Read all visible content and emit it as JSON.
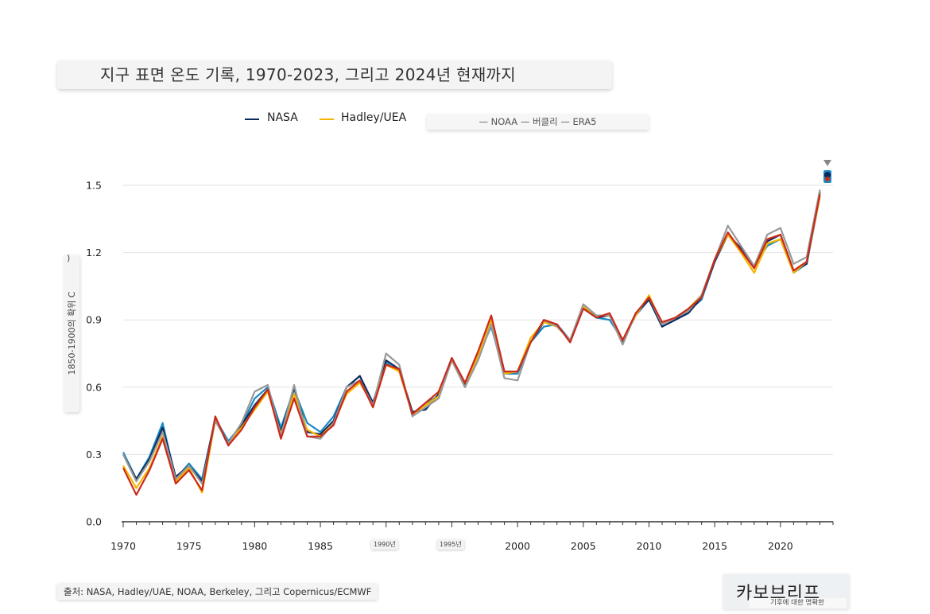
{
  "header": {
    "title": "지구 표면 온도 기록, 1970-2023, 그리고 2024년 현재까지"
  },
  "legend": {
    "nasa": "NASA",
    "hadley": "Hadley/UEA",
    "others": "— NOAA — 버클리 — ERA5"
  },
  "axis": {
    "ylabel": "1850-1900의 확위 C",
    "ylabel_paren": ")"
  },
  "chips": {
    "c1990": "1990년",
    "c1995": "1995년"
  },
  "footer": {
    "source": "출처: NASA, Hadley/UAE, NOAA, Berkeley, 그리고 Copernicus/ECMWF",
    "brand": "카보브리프",
    "tagline": "기후에 대한 명확한"
  },
  "chart_data": {
    "type": "line",
    "ylabel": "1850-1900의 확위 C",
    "xlim": [
      1970,
      2024
    ],
    "ylim": [
      0,
      1.5
    ],
    "yticks": [
      "0.0",
      "0.3",
      "0.6",
      "0.9",
      "1.2",
      "1.5"
    ],
    "xticks": [
      "1970",
      "1975",
      "1980",
      "1985",
      "1990",
      "1995",
      "2000",
      "2005",
      "2010",
      "2015",
      "2020"
    ],
    "grid": true,
    "legend_position": "top",
    "x": [
      1970,
      1971,
      1972,
      1973,
      1974,
      1975,
      1976,
      1977,
      1978,
      1979,
      1980,
      1981,
      1982,
      1983,
      1984,
      1985,
      1986,
      1987,
      1988,
      1989,
      1990,
      1991,
      1992,
      1993,
      1994,
      1995,
      1996,
      1997,
      1998,
      1999,
      2000,
      2001,
      2002,
      2003,
      2004,
      2005,
      2006,
      2007,
      2008,
      2009,
      2010,
      2011,
      2012,
      2013,
      2014,
      2015,
      2016,
      2017,
      2018,
      2019,
      2020,
      2021,
      2022,
      2023
    ],
    "series": [
      {
        "name": "NASA",
        "color": "#0b2a5c",
        "values": [
          0.3,
          0.19,
          0.28,
          0.42,
          0.2,
          0.25,
          0.18,
          0.46,
          0.34,
          0.43,
          0.52,
          0.59,
          0.4,
          0.6,
          0.4,
          0.39,
          0.45,
          0.6,
          0.65,
          0.53,
          0.72,
          0.68,
          0.49,
          0.5,
          0.57,
          0.73,
          0.61,
          0.75,
          0.9,
          0.66,
          0.67,
          0.8,
          0.89,
          0.88,
          0.8,
          0.96,
          0.91,
          0.92,
          0.8,
          0.93,
          0.99,
          0.87,
          0.9,
          0.93,
          1.0,
          1.16,
          1.28,
          1.22,
          1.14,
          1.25,
          1.28,
          1.12,
          1.15,
          1.47
        ]
      },
      {
        "name": "Hadley/UEA",
        "color": "#f5b400",
        "values": [
          0.25,
          0.15,
          0.24,
          0.38,
          0.18,
          0.24,
          0.13,
          0.45,
          0.35,
          0.42,
          0.5,
          0.58,
          0.39,
          0.57,
          0.41,
          0.38,
          0.44,
          0.57,
          0.62,
          0.52,
          0.7,
          0.67,
          0.48,
          0.52,
          0.56,
          0.72,
          0.6,
          0.74,
          0.9,
          0.66,
          0.67,
          0.82,
          0.89,
          0.87,
          0.81,
          0.96,
          0.92,
          0.92,
          0.81,
          0.92,
          1.01,
          0.88,
          0.91,
          0.95,
          1.01,
          1.17,
          1.28,
          1.2,
          1.11,
          1.24,
          1.26,
          1.11,
          1.16,
          1.45
        ]
      },
      {
        "name": "NOAA",
        "color": "#1a8bc6",
        "values": [
          0.31,
          0.19,
          0.29,
          0.44,
          0.19,
          0.26,
          0.19,
          0.46,
          0.36,
          0.43,
          0.55,
          0.6,
          0.42,
          0.59,
          0.44,
          0.4,
          0.47,
          0.6,
          0.65,
          0.53,
          0.71,
          0.67,
          0.48,
          0.53,
          0.56,
          0.73,
          0.6,
          0.74,
          0.87,
          0.66,
          0.66,
          0.8,
          0.87,
          0.88,
          0.81,
          0.95,
          0.91,
          0.9,
          0.81,
          0.92,
          0.99,
          0.87,
          0.9,
          0.94,
          0.99,
          1.16,
          1.28,
          1.21,
          1.14,
          1.23,
          1.26,
          1.11,
          1.15,
          1.45
        ]
      },
      {
        "name": "버클리",
        "color": "#999999",
        "values": [
          0.3,
          0.18,
          0.27,
          0.4,
          0.19,
          0.25,
          0.17,
          0.45,
          0.35,
          0.44,
          0.58,
          0.61,
          0.38,
          0.61,
          0.38,
          0.37,
          0.44,
          0.6,
          0.63,
          0.52,
          0.75,
          0.7,
          0.47,
          0.51,
          0.55,
          0.72,
          0.6,
          0.72,
          0.88,
          0.64,
          0.63,
          0.8,
          0.9,
          0.87,
          0.81,
          0.97,
          0.92,
          0.92,
          0.79,
          0.93,
          1.0,
          0.88,
          0.91,
          0.94,
          1.01,
          1.17,
          1.32,
          1.23,
          1.14,
          1.28,
          1.31,
          1.15,
          1.18,
          1.48
        ]
      },
      {
        "name": "ERA5",
        "color": "#cc2a1a",
        "values": [
          0.24,
          0.12,
          0.23,
          0.37,
          0.17,
          0.23,
          0.14,
          0.47,
          0.34,
          0.41,
          0.51,
          0.59,
          0.37,
          0.55,
          0.38,
          0.38,
          0.43,
          0.58,
          0.63,
          0.51,
          0.7,
          0.68,
          0.48,
          0.53,
          0.58,
          0.73,
          0.62,
          0.76,
          0.92,
          0.67,
          0.67,
          0.8,
          0.9,
          0.88,
          0.8,
          0.95,
          0.91,
          0.93,
          0.81,
          0.93,
          1.0,
          0.89,
          0.91,
          0.95,
          1.0,
          1.17,
          1.29,
          1.21,
          1.13,
          1.26,
          1.28,
          1.12,
          1.16,
          1.46
        ]
      }
    ]
  }
}
